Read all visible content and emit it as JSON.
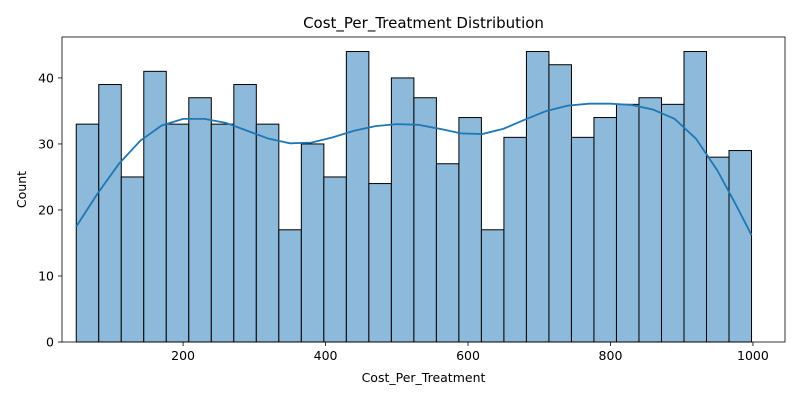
{
  "chart_data": {
    "type": "bar",
    "title": "Cost_Per_Treatment Distribution",
    "xlabel": "Cost_Per_Treatment",
    "ylabel": "Count",
    "xlim": [
      30,
      1045
    ],
    "ylim": [
      0,
      46.2
    ],
    "bin_edges": [
      50.0,
      81.6,
      113.2,
      144.8,
      176.4,
      208.0,
      239.6,
      271.2,
      302.8,
      334.4,
      366.0,
      397.6,
      429.2,
      460.8,
      492.4,
      524.0,
      555.6,
      587.2,
      618.8,
      650.4,
      682.0,
      713.6,
      745.2,
      776.8,
      808.4,
      840.0,
      871.6,
      903.2,
      934.8,
      966.4,
      998.0
    ],
    "values": [
      33,
      39,
      25,
      41,
      33,
      37,
      33,
      39,
      33,
      17,
      30,
      25,
      44,
      24,
      40,
      37,
      27,
      34,
      17,
      31,
      44,
      42,
      31,
      34,
      36,
      37,
      36,
      44,
      28,
      29
    ],
    "kde": {
      "x": [
        50,
        80,
        110,
        140,
        170,
        200,
        230,
        260,
        290,
        320,
        350,
        380,
        410,
        440,
        470,
        500,
        530,
        560,
        590,
        620,
        650,
        680,
        710,
        740,
        770,
        800,
        830,
        860,
        890,
        920,
        950,
        975,
        998
      ],
      "y": [
        17.5,
        22.5,
        27.0,
        30.5,
        32.8,
        33.8,
        33.8,
        33.2,
        32.0,
        30.8,
        30.1,
        30.2,
        31.0,
        32.0,
        32.7,
        33.0,
        32.9,
        32.3,
        31.6,
        31.5,
        32.3,
        33.7,
        35.0,
        35.8,
        36.1,
        36.1,
        35.9,
        35.2,
        33.8,
        30.8,
        26.0,
        21.0,
        16.2
      ]
    },
    "x_ticks": [
      200,
      400,
      600,
      800,
      1000
    ],
    "y_ticks": [
      0,
      10,
      20,
      30,
      40
    ],
    "colors": {
      "bar_fill": "#8db9da",
      "bar_edge": "#000000",
      "kde_line": "#1f77b4"
    },
    "grid": false,
    "legend": "none"
  }
}
